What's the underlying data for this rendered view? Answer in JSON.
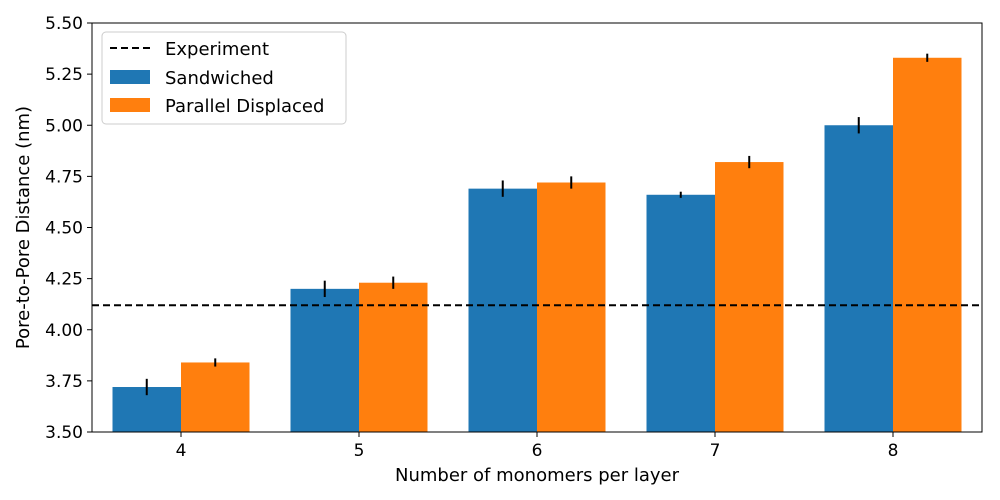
{
  "chart_data": {
    "type": "bar",
    "title": "",
    "xlabel": "Number of monomers per layer",
    "ylabel": "Pore-to-Pore Distance (nm)",
    "categories": [
      "4",
      "5",
      "6",
      "7",
      "8"
    ],
    "ylim": [
      3.5,
      5.5
    ],
    "yticks": [
      "3.50",
      "3.75",
      "4.00",
      "4.25",
      "4.50",
      "4.75",
      "5.00",
      "5.25",
      "5.50"
    ],
    "grid": false,
    "legend_position": "top-left",
    "series": [
      {
        "name": "Sandwiched",
        "color": "#1f77b4",
        "values": [
          3.72,
          4.2,
          4.69,
          4.66,
          5.0
        ],
        "errors": [
          0.04,
          0.04,
          0.04,
          0.015,
          0.04
        ]
      },
      {
        "name": "Parallel Displaced",
        "color": "#ff7f0e",
        "values": [
          3.84,
          4.23,
          4.72,
          4.82,
          5.33
        ],
        "errors": [
          0.02,
          0.03,
          0.03,
          0.03,
          0.02
        ]
      }
    ],
    "reference_line": {
      "name": "Experiment",
      "value": 4.12,
      "style": "dashed",
      "color": "#000000"
    },
    "error_bar_color": "#000000"
  }
}
